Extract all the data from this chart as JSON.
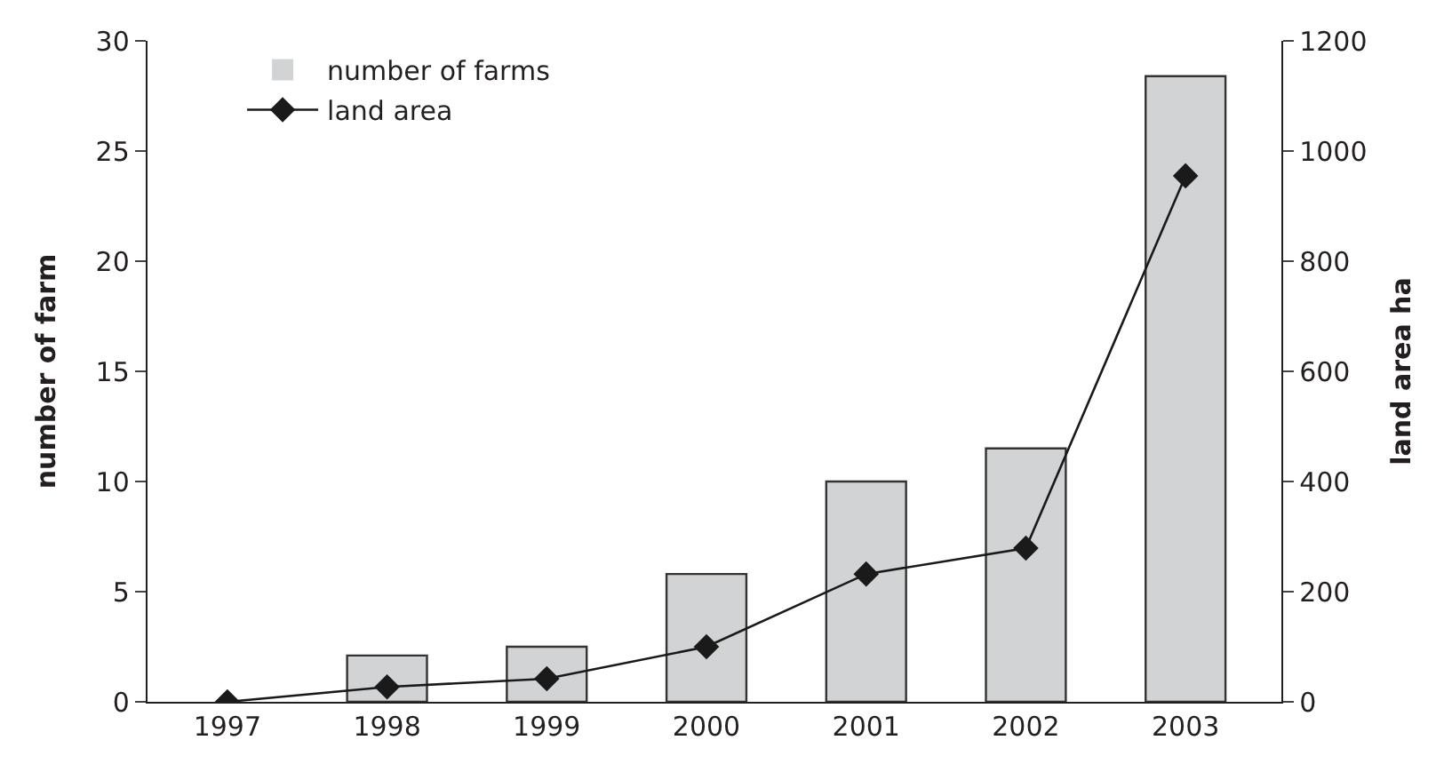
{
  "chart_data": {
    "type": "bar",
    "categories": [
      "1997",
      "1998",
      "1999",
      "2000",
      "2001",
      "2002",
      "2003"
    ],
    "series": [
      {
        "name": "number of farms",
        "color": "#d1d3d4",
        "values": [
          0,
          2.1,
          2.5,
          5.8,
          10.0,
          11.5,
          28.4
        ]
      },
      {
        "name": "land area",
        "type": "line",
        "axis": "y2",
        "color": "#1a1a1a",
        "marker": "diamond",
        "values": [
          0,
          27,
          42,
          100,
          232,
          279,
          955
        ]
      }
    ],
    "ylabel": "number of farm",
    "y2label": "land area ha",
    "ylim": [
      0,
      30
    ],
    "yticks": [
      0,
      5,
      10,
      15,
      20,
      25,
      30
    ],
    "y2lim": [
      0,
      1200
    ],
    "y2ticks": [
      0,
      200,
      400,
      600,
      800,
      1000,
      1200
    ],
    "legend": "top left"
  }
}
